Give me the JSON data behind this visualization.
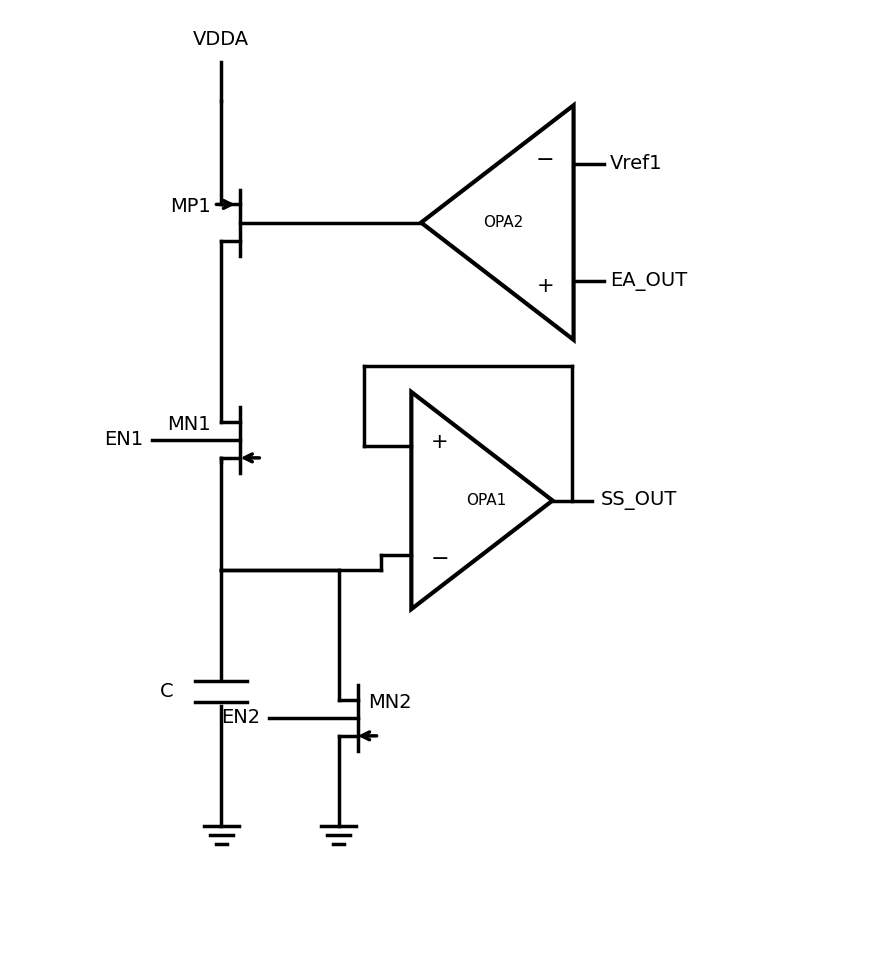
{
  "bg_color": "#ffffff",
  "lc": "#000000",
  "lw": 2.5,
  "fw": 8.77,
  "fh": 9.75,
  "labels": {
    "vdda": "VDDA",
    "mp1": "MP1",
    "mn1": "MN1",
    "mn2": "MN2",
    "en1": "EN1",
    "en2": "EN2",
    "opa1": "OPA1",
    "opa2": "OPA2",
    "vref1": "Vref1",
    "ea_out": "EA_OUT",
    "ss_out": "SS_OUT",
    "cap": "C"
  }
}
